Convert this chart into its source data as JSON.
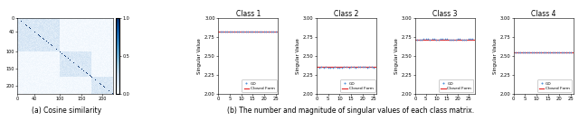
{
  "heatmap_title": "(a) Cosine similarity",
  "heatmap_colorbar_max": 1.0,
  "heatmap_colorbar_min": 0.0,
  "heatmap_colorbar_ticks": [
    0.0,
    0.5,
    1.0
  ],
  "class_titles": [
    "Class 1",
    "Class 2",
    "Class 3",
    "Class 4"
  ],
  "subplot_caption": "(b) The number and magnitude of singular values of each class matrix.",
  "class1": {
    "n_singular": 25,
    "sv_value": 2.82,
    "xlim": [
      0,
      26
    ],
    "ylim": [
      2.0,
      3.0
    ],
    "xticks": [
      0,
      5,
      10,
      15,
      20,
      25
    ]
  },
  "class2": {
    "n_singular": 25,
    "sv_value": 2.35,
    "xlim": [
      0,
      26
    ],
    "ylim": [
      2.0,
      3.0
    ],
    "xticks": [
      0,
      5,
      10,
      15,
      20,
      25
    ]
  },
  "class3": {
    "n_singular": 27,
    "sv_value": 2.72,
    "xlim": [
      0,
      28
    ],
    "ylim": [
      2.0,
      3.0
    ],
    "xticks": [
      0,
      5,
      10,
      15,
      20,
      25
    ]
  },
  "class4": {
    "n_singular": 25,
    "sv_value": 2.55,
    "xlim": [
      0,
      26
    ],
    "ylim": [
      2.0,
      3.0
    ],
    "xticks": [
      0,
      5,
      10,
      15,
      20,
      25
    ]
  },
  "gd_color": "#4a90d9",
  "cf_color": "#e63030",
  "ylabel": "Singular Value",
  "yticks": [
    2.0,
    2.25,
    2.5,
    2.75,
    3.0
  ],
  "block_sizes": [
    100,
    75,
    50
  ],
  "total_size": 225,
  "heatmap_block_values": [
    0.15,
    0.12,
    0.18
  ],
  "heatmap_off_max": 0.04,
  "heatmap_xticks": [
    0,
    40,
    100,
    150,
    200
  ],
  "heatmap_yticks": [
    0,
    40,
    100,
    150,
    200
  ]
}
